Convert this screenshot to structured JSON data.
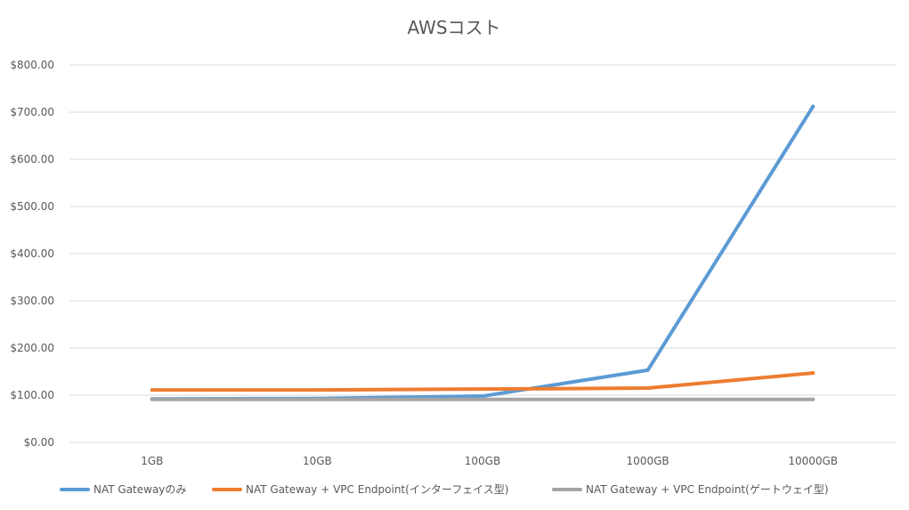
{
  "chart_data": {
    "type": "line",
    "title": "AWSコスト",
    "xlabel": "",
    "ylabel": "",
    "categories": [
      "1GB",
      "10GB",
      "100GB",
      "1000GB",
      "10000GB"
    ],
    "y_ticks": [
      "$0.00",
      "$100.00",
      "$200.00",
      "$300.00",
      "$400.00",
      "$500.00",
      "$600.00",
      "$700.00",
      "$800.00"
    ],
    "ylim": [
      0,
      800
    ],
    "grid": true,
    "legend_position": "bottom",
    "series": [
      {
        "name": "NAT Gatewayのみ",
        "color": "#5b9bd5",
        "values": [
          92,
          93,
          98,
          153,
          712
        ]
      },
      {
        "name": "NAT Gateway + VPC Endpoint(インターフェイス型)",
        "color": "#ed7d31",
        "values": [
          111,
          111,
          113,
          115,
          147
        ]
      },
      {
        "name": "NAT Gateway + VPC Endpoint(ゲートウェイ型)",
        "color": "#a5a5a5",
        "values": [
          91,
          91,
          91,
          91,
          91
        ]
      }
    ]
  }
}
